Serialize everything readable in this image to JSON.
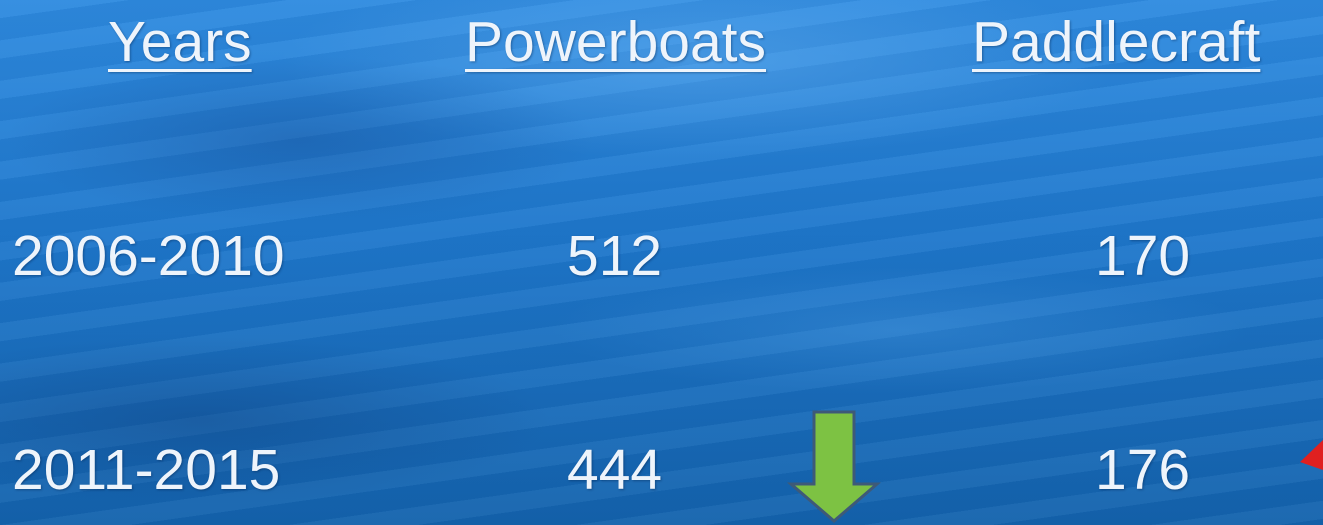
{
  "table": {
    "header": [
      "Years",
      "Powerboats",
      "Paddlecraft"
    ],
    "rows": [
      [
        "2006-2010",
        512,
        170
      ],
      [
        "2011-2015",
        444,
        176
      ]
    ]
  }
}
